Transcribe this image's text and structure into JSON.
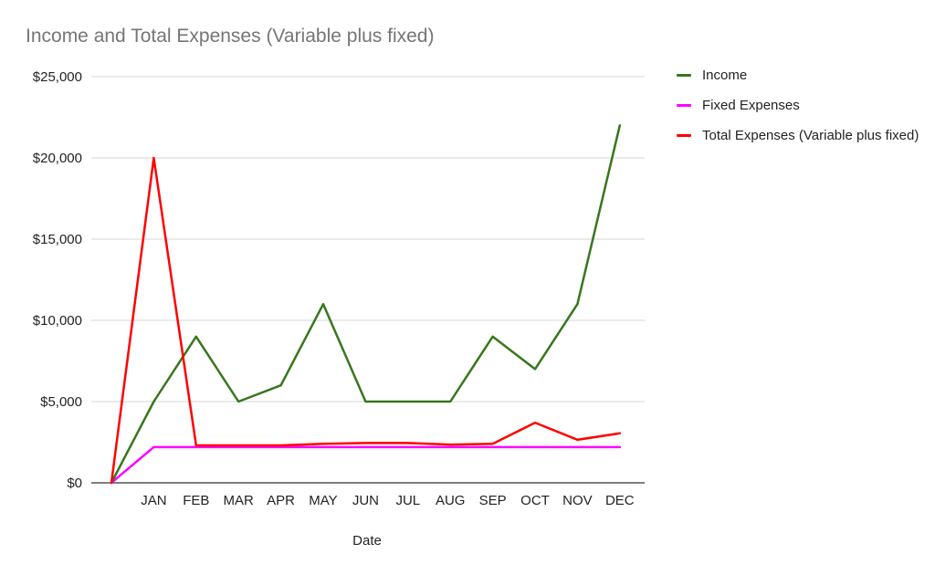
{
  "chart_data": {
    "type": "line",
    "title": "Income and Total Expenses (Variable plus fixed)",
    "xlabel": "Date",
    "ylabel": "",
    "ylim": [
      0,
      25000
    ],
    "y_ticks": [
      0,
      5000,
      10000,
      15000,
      20000,
      25000
    ],
    "y_tick_labels": [
      "$0",
      "$5,000",
      "$10,000",
      "$15,000",
      "$20,000",
      "$25,000"
    ],
    "grid": true,
    "legend_position": "right",
    "categories": [
      "",
      "JAN",
      "FEB",
      "MAR",
      "APR",
      "MAY",
      "JUN",
      "JUL",
      "AUG",
      "SEP",
      "OCT",
      "NOV",
      "DEC"
    ],
    "series": [
      {
        "name": "Income",
        "color": "#38761d",
        "values": [
          0,
          5000,
          9000,
          5000,
          6000,
          11000,
          5000,
          5000,
          5000,
          9000,
          7000,
          11000,
          22000
        ]
      },
      {
        "name": "Fixed Expenses",
        "color": "#ff00ff",
        "values": [
          0,
          2200,
          2200,
          2200,
          2200,
          2200,
          2200,
          2200,
          2200,
          2200,
          2200,
          2200,
          2200
        ]
      },
      {
        "name": "Total Expenses (Variable plus fixed)",
        "color": "#ff0000",
        "values": [
          0,
          20000,
          2300,
          2300,
          2300,
          2400,
          2450,
          2450,
          2350,
          2400,
          3700,
          2650,
          3050
        ]
      }
    ]
  }
}
